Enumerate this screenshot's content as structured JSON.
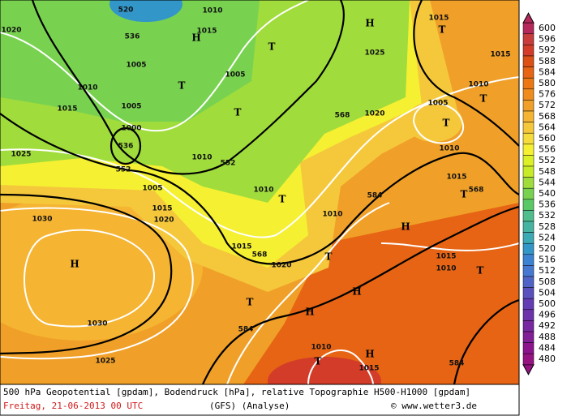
{
  "map": {
    "labels": [
      "520",
      "536",
      "1010",
      "H",
      "1015",
      "1020",
      "1005",
      "1010",
      "T",
      "1005",
      "T",
      "H",
      "1025",
      "1015",
      "T",
      "1015",
      "T",
      "1015",
      "1005",
      "568",
      "1020",
      "1005",
      "T",
      "1010",
      "T",
      "1010",
      "536",
      "1000",
      "552",
      "552",
      "1010",
      "1025",
      "1005",
      "1015",
      "1020",
      "1010",
      "T",
      "584",
      "1015",
      "T",
      "568",
      "1030",
      "H",
      "1010",
      "H",
      "1015",
      "568",
      "T",
      "1020",
      "1015",
      "1010",
      "T",
      "H",
      "H",
      "T",
      "584",
      "1030",
      "1010",
      "T",
      "H",
      "1015",
      "1025",
      "584"
    ]
  },
  "colorbar": {
    "labels": [
      600,
      596,
      592,
      588,
      584,
      580,
      576,
      572,
      568,
      564,
      560,
      556,
      552,
      548,
      544,
      540,
      536,
      532,
      528,
      524,
      520,
      516,
      512,
      508,
      504,
      500,
      496,
      492,
      488,
      484,
      480
    ],
    "colors": [
      "#b4285a",
      "#c83c3c",
      "#d23c28",
      "#dc5014",
      "#e66414",
      "#eb7814",
      "#f08c1e",
      "#f0a028",
      "#f5b432",
      "#f5c83c",
      "#f5dc3c",
      "#f5f032",
      "#dcf028",
      "#c8eb28",
      "#a0dc3c",
      "#78d250",
      "#5ac864",
      "#50be8c",
      "#46b4a0",
      "#3caab4",
      "#3296c8",
      "#3c82d2",
      "#4678d2",
      "#5064c8",
      "#5a50be",
      "#643cb4",
      "#6e32aa",
      "#7828a0",
      "#821e96",
      "#8c148c",
      "#961482"
    ]
  },
  "footer": {
    "line1": "500 hPa Geopotential [gpdam], Bodendruck [hPa], relative Topographie H500-H1000 [gpdam]",
    "date": "Freitag, 21-06-2013  00 UTC",
    "model": "(GFS)  (Analyse)",
    "copyright": "© www.wetter3.de"
  }
}
